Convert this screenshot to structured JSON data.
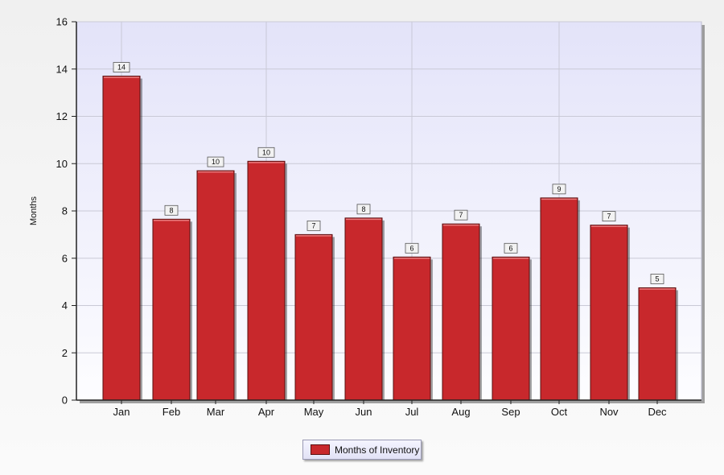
{
  "chart_data": {
    "type": "bar",
    "categories": [
      "Jan",
      "Feb",
      "Mar",
      "Apr",
      "May",
      "Jun",
      "Jul",
      "Aug",
      "Sep",
      "Oct",
      "Nov",
      "Dec"
    ],
    "series": [
      {
        "name": "Months of Inventory",
        "values": [
          13.7,
          7.65,
          9.7,
          10.1,
          7.0,
          7.7,
          6.05,
          7.45,
          6.05,
          8.55,
          7.4,
          4.75
        ],
        "data_labels": [
          "14",
          "8",
          "10",
          "10",
          "7",
          "8",
          "6",
          "7",
          "6",
          "9",
          "7",
          "5"
        ],
        "color": "#c8282c"
      }
    ],
    "xlabel": "",
    "ylabel": "Months",
    "ylim": [
      0,
      16
    ],
    "yticks": [
      "0",
      "2",
      "4",
      "6",
      "8",
      "10",
      "12",
      "14",
      "16"
    ],
    "grid": true,
    "legend_position": "bottom-center",
    "colors": {
      "plot_bg_top": "#e3e3f9",
      "plot_bg_bottom": "#fdfdff",
      "grid": "#c9c9d6",
      "bar_fill": "#c8282c",
      "bar_edge": "#5a0f10"
    }
  }
}
